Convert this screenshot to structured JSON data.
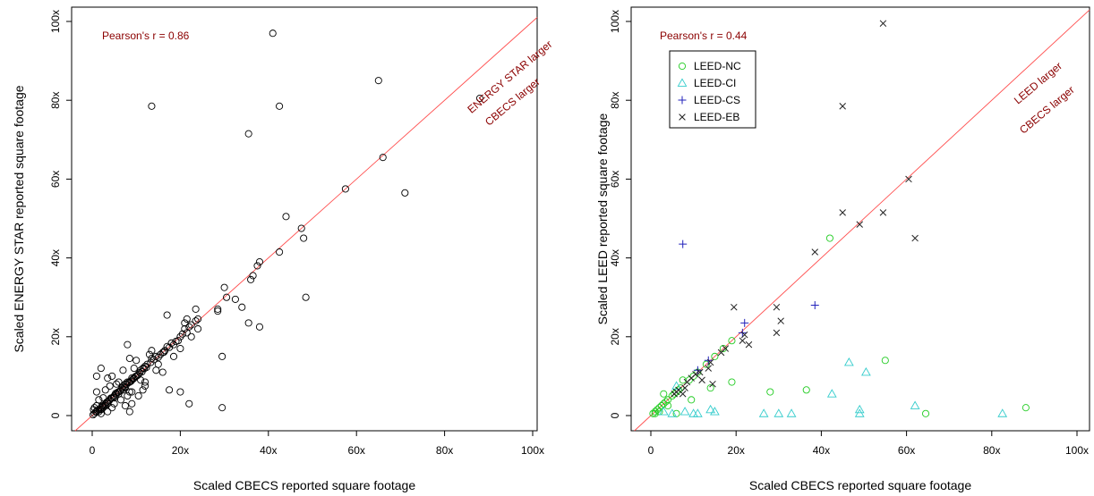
{
  "chart_data": [
    {
      "type": "scatter",
      "xlabel": "Scaled CBECS reported square footage",
      "ylabel": "Scaled ENERGY STAR reported square footage",
      "xlim": [
        0,
        100
      ],
      "ylim": [
        0,
        100
      ],
      "x_ticks": [
        "0",
        "20x",
        "40x",
        "60x",
        "80x",
        "100x"
      ],
      "y_ticks": [
        "0",
        "20x",
        "40x",
        "60x",
        "80x",
        "100x"
      ],
      "annotations": {
        "pearson": "Pearson's r = 0.86",
        "above_line": "ENERGY STAR larger",
        "below_line": "CBECS larger"
      },
      "reference_line_color": "#ff4d4d",
      "grid": false,
      "series": [
        {
          "marker": "circle",
          "color": "#000000",
          "points": [
            [
              41.0,
              97.0
            ],
            [
              13.5,
              78.5
            ],
            [
              42.5,
              78.5
            ],
            [
              65.0,
              85.0
            ],
            [
              88.0,
              80.5
            ],
            [
              35.5,
              71.5
            ],
            [
              66.0,
              65.5
            ],
            [
              57.5,
              57.5
            ],
            [
              71.0,
              56.5
            ],
            [
              44.0,
              50.5
            ],
            [
              47.5,
              47.5
            ],
            [
              48.0,
              45.0
            ],
            [
              42.5,
              41.5
            ],
            [
              38.0,
              39.0
            ],
            [
              37.5,
              38.0
            ],
            [
              36.5,
              35.5
            ],
            [
              36.0,
              34.5
            ],
            [
              48.5,
              30.0
            ],
            [
              30.0,
              32.5
            ],
            [
              30.5,
              30.0
            ],
            [
              32.5,
              29.5
            ],
            [
              28.5,
              27.0
            ],
            [
              28.5,
              26.5
            ],
            [
              34.0,
              27.5
            ],
            [
              38.0,
              22.5
            ],
            [
              35.5,
              23.5
            ],
            [
              29.5,
              15.0
            ],
            [
              29.5,
              2.0
            ],
            [
              22.0,
              3.0
            ],
            [
              20.0,
              6.0
            ],
            [
              17.5,
              6.5
            ],
            [
              17.0,
              25.5
            ],
            [
              23.5,
              27.0
            ],
            [
              21.5,
              24.5
            ],
            [
              21.0,
              23.5
            ],
            [
              24.0,
              24.5
            ],
            [
              22.0,
              22.5
            ],
            [
              21.5,
              21.0
            ],
            [
              22.5,
              20.0
            ],
            [
              20.0,
              20.0
            ],
            [
              19.5,
              19.0
            ],
            [
              18.5,
              18.0
            ],
            [
              17.0,
              17.5
            ],
            [
              16.5,
              16.5
            ],
            [
              16.0,
              16.0
            ],
            [
              15.5,
              15.5
            ],
            [
              14.5,
              15.0
            ],
            [
              13.5,
              14.5
            ],
            [
              13.0,
              15.5
            ],
            [
              12.5,
              13.0
            ],
            [
              12.0,
              12.5
            ],
            [
              11.5,
              12.0
            ],
            [
              11.0,
              11.5
            ],
            [
              12.0,
              8.5
            ],
            [
              11.5,
              6.5
            ],
            [
              10.5,
              10.5
            ],
            [
              10.0,
              10.0
            ],
            [
              9.5,
              9.5
            ],
            [
              9.0,
              9.5
            ],
            [
              9.0,
              9.0
            ],
            [
              8.5,
              8.5
            ],
            [
              8.0,
              8.5
            ],
            [
              8.0,
              18.0
            ],
            [
              8.5,
              14.5
            ],
            [
              8.5,
              6.0
            ],
            [
              9.0,
              3.0
            ],
            [
              8.5,
              1.0
            ],
            [
              7.5,
              8.0
            ],
            [
              7.5,
              7.0
            ],
            [
              7.0,
              7.5
            ],
            [
              7.0,
              6.5
            ],
            [
              6.5,
              6.5
            ],
            [
              6.0,
              6.0
            ],
            [
              6.0,
              5.5
            ],
            [
              5.5,
              5.5
            ],
            [
              5.0,
              5.0
            ],
            [
              5.0,
              4.5
            ],
            [
              4.5,
              4.5
            ],
            [
              4.5,
              10.0
            ],
            [
              4.0,
              4.0
            ],
            [
              4.0,
              7.5
            ],
            [
              3.5,
              3.5
            ],
            [
              3.5,
              3.0
            ],
            [
              3.0,
              3.0
            ],
            [
              3.0,
              2.5
            ],
            [
              2.5,
              2.5
            ],
            [
              2.5,
              2.0
            ],
            [
              2.0,
              12.0
            ],
            [
              2.0,
              2.0
            ],
            [
              2.0,
              1.5
            ],
            [
              1.5,
              1.5
            ],
            [
              1.5,
              1.0
            ],
            [
              1.0,
              10.0
            ],
            [
              1.0,
              6.0
            ],
            [
              1.0,
              1.0
            ],
            [
              0.5,
              0.5
            ],
            [
              0.5,
              2.0
            ],
            [
              0.3,
              1.5
            ],
            [
              0.2,
              0.2
            ],
            [
              0.8,
              0.9
            ],
            [
              1.2,
              1.3
            ],
            [
              1.8,
              1.6
            ],
            [
              2.2,
              2.4
            ],
            [
              2.8,
              2.6
            ],
            [
              3.3,
              3.4
            ],
            [
              3.8,
              3.7
            ],
            [
              4.2,
              4.4
            ],
            [
              4.8,
              4.7
            ],
            [
              5.3,
              5.6
            ],
            [
              5.8,
              5.9
            ],
            [
              6.3,
              6.2
            ],
            [
              6.8,
              7.0
            ],
            [
              7.3,
              7.2
            ],
            [
              7.8,
              7.9
            ],
            [
              8.3,
              8.4
            ],
            [
              8.8,
              8.7
            ],
            [
              9.3,
              9.3
            ],
            [
              9.8,
              9.9
            ],
            [
              10.3,
              10.2
            ],
            [
              10.8,
              10.9
            ],
            [
              11.3,
              11.1
            ],
            [
              11.8,
              11.9
            ],
            [
              12.3,
              12.2
            ],
            [
              13.3,
              13.5
            ],
            [
              14.0,
              14.2
            ],
            [
              15.0,
              14.8
            ],
            [
              16.3,
              16.1
            ],
            [
              17.5,
              17.3
            ],
            [
              18.0,
              18.4
            ],
            [
              19.0,
              18.8
            ],
            [
              20.5,
              20.7
            ],
            [
              21.0,
              22.0
            ],
            [
              22.5,
              23.0
            ],
            [
              23.5,
              24.0
            ],
            [
              7.0,
              11.5
            ],
            [
              5.5,
              8.0
            ],
            [
              4.5,
              2.0
            ],
            [
              3.5,
              9.5
            ],
            [
              10.5,
              5.0
            ],
            [
              12.0,
              7.5
            ],
            [
              15.0,
              13.0
            ],
            [
              16.0,
              11.0
            ],
            [
              18.5,
              15.0
            ],
            [
              20.0,
              17.0
            ],
            [
              2.5,
              4.5
            ],
            [
              3.0,
              6.5
            ],
            [
              6.5,
              4.0
            ],
            [
              7.5,
              2.5
            ],
            [
              9.5,
              12.0
            ],
            [
              10.0,
              14.0
            ],
            [
              13.5,
              16.5
            ],
            [
              14.5,
              11.5
            ],
            [
              24.0,
              22.0
            ],
            [
              1.0,
              2.5
            ],
            [
              1.5,
              4.0
            ],
            [
              2.0,
              0.5
            ],
            [
              3.5,
              1.0
            ],
            [
              5.0,
              3.0
            ],
            [
              6.0,
              8.5
            ],
            [
              8.0,
              5.0
            ],
            [
              9.0,
              6.0
            ],
            [
              11.0,
              9.0
            ]
          ]
        }
      ]
    },
    {
      "type": "scatter",
      "xlabel": "Scaled CBECS reported square footage",
      "ylabel": "Scaled LEED reported square footage",
      "xlim": [
        0,
        100
      ],
      "ylim": [
        0,
        100
      ],
      "x_ticks": [
        "0",
        "20x",
        "40x",
        "60x",
        "80x",
        "100x"
      ],
      "y_ticks": [
        "0",
        "20x",
        "40x",
        "60x",
        "80x",
        "100x"
      ],
      "annotations": {
        "pearson": "Pearson's r = 0.44",
        "above_line": "LEED larger",
        "below_line": "CBECS larger"
      },
      "reference_line_color": "#ff4d4d",
      "grid": false,
      "legend_position": "top-left",
      "series": [
        {
          "name": "LEED-NC",
          "marker": "circle",
          "color": "#22cc22",
          "points": [
            [
              0.5,
              0.5
            ],
            [
              1.0,
              1.0
            ],
            [
              1.5,
              1.5
            ],
            [
              2.0,
              2.0
            ],
            [
              2.5,
              2.5
            ],
            [
              3.0,
              3.0
            ],
            [
              3.5,
              3.5
            ],
            [
              4.0,
              4.0
            ],
            [
              5.0,
              5.0
            ],
            [
              5.5,
              5.5
            ],
            [
              6.0,
              6.0
            ],
            [
              6.5,
              6.5
            ],
            [
              7.0,
              7.0
            ],
            [
              7.5,
              9.0
            ],
            [
              9.0,
              9.0
            ],
            [
              10.0,
              10.0
            ],
            [
              11.0,
              11.0
            ],
            [
              13.0,
              13.0
            ],
            [
              15.0,
              15.0
            ],
            [
              17.0,
              17.0
            ],
            [
              19.0,
              19.0
            ],
            [
              3.0,
              5.5
            ],
            [
              4.0,
              2.5
            ],
            [
              6.0,
              0.5
            ],
            [
              9.5,
              4.0
            ],
            [
              14.0,
              7.0
            ],
            [
              19.0,
              8.5
            ],
            [
              28.0,
              6.0
            ],
            [
              36.5,
              6.5
            ],
            [
              42.0,
              45.0
            ],
            [
              55.0,
              14.0
            ],
            [
              64.5,
              0.5
            ],
            [
              88.0,
              2.0
            ],
            [
              2.0,
              1.0
            ],
            [
              1.0,
              0.5
            ]
          ]
        },
        {
          "name": "LEED-CI",
          "marker": "triangle",
          "color": "#33cccc",
          "points": [
            [
              3.0,
              1.0
            ],
            [
              5.0,
              0.5
            ],
            [
              10.0,
              0.5
            ],
            [
              11.0,
              0.5
            ],
            [
              14.0,
              1.5
            ],
            [
              15.0,
              1.0
            ],
            [
              26.5,
              0.5
            ],
            [
              30.0,
              0.5
            ],
            [
              33.0,
              0.5
            ],
            [
              42.5,
              5.5
            ],
            [
              46.5,
              13.5
            ],
            [
              49.0,
              1.5
            ],
            [
              49.0,
              0.5
            ],
            [
              50.5,
              11.0
            ],
            [
              62.0,
              2.5
            ],
            [
              82.5,
              0.5
            ],
            [
              6.0,
              7.5
            ],
            [
              8.0,
              1.0
            ]
          ]
        },
        {
          "name": "LEED-CS",
          "marker": "plus",
          "color": "#2222bb",
          "points": [
            [
              7.5,
              43.5
            ],
            [
              38.5,
              28.0
            ],
            [
              22.0,
              23.5
            ],
            [
              13.5,
              14.0
            ],
            [
              11.0,
              11.5
            ],
            [
              21.5,
              21.0
            ]
          ]
        },
        {
          "name": "LEED-EB",
          "marker": "x",
          "color": "#222222",
          "points": [
            [
              54.5,
              99.5
            ],
            [
              45.0,
              78.5
            ],
            [
              45.0,
              51.5
            ],
            [
              54.5,
              51.5
            ],
            [
              60.5,
              60.0
            ],
            [
              62.0,
              45.0
            ],
            [
              49.0,
              48.5
            ],
            [
              38.5,
              41.5
            ],
            [
              19.5,
              27.5
            ],
            [
              29.5,
              27.5
            ],
            [
              30.5,
              24.0
            ],
            [
              29.5,
              21.0
            ],
            [
              23.0,
              18.0
            ],
            [
              21.5,
              19.0
            ],
            [
              22.0,
              20.5
            ],
            [
              14.5,
              8.0
            ],
            [
              11.5,
              11.0
            ],
            [
              10.5,
              10.5
            ],
            [
              9.5,
              9.5
            ],
            [
              8.5,
              8.5
            ],
            [
              8.0,
              7.0
            ],
            [
              7.5,
              5.5
            ],
            [
              6.5,
              6.5
            ],
            [
              6.0,
              6.0
            ],
            [
              5.5,
              5.5
            ],
            [
              13.5,
              12.0
            ],
            [
              14.0,
              13.5
            ],
            [
              16.5,
              16.0
            ],
            [
              17.5,
              17.0
            ],
            [
              12.0,
              9.0
            ]
          ]
        }
      ]
    }
  ]
}
